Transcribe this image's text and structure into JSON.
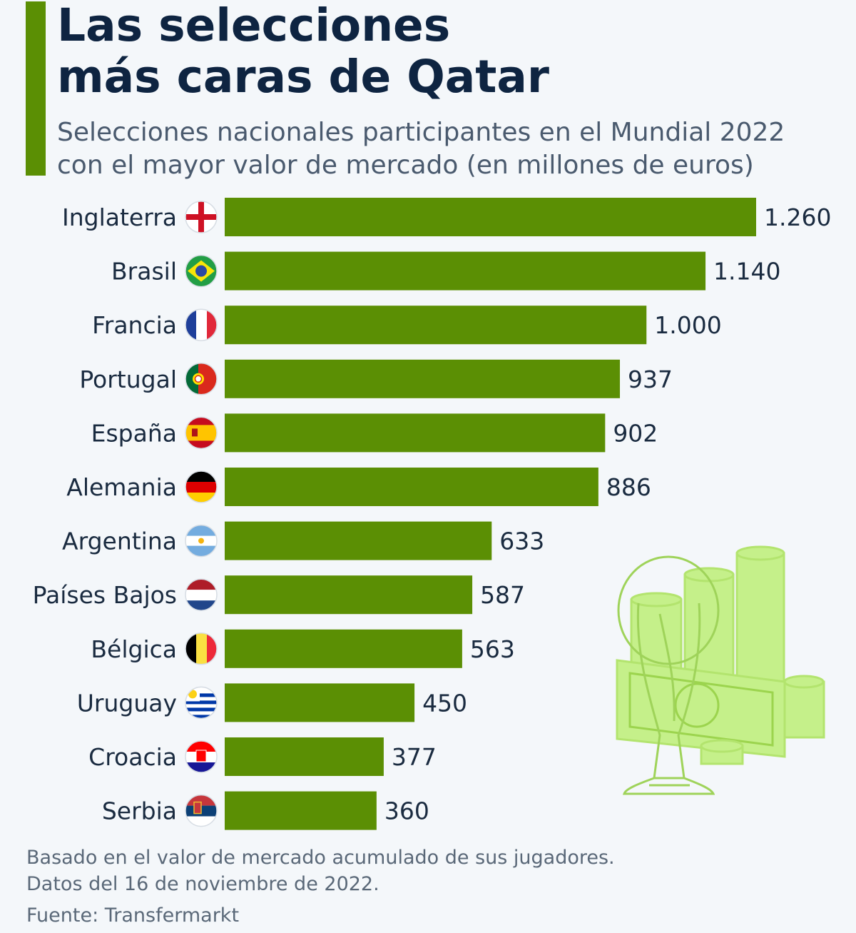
{
  "title_line1": "Las selecciones",
  "title_line2": "más caras de Qatar",
  "subtitle_line1": "Selecciones nacionales participantes en el Mundial 2022",
  "subtitle_line2": "con el mayor valor de mercado (en millones de euros)",
  "colors": {
    "bar": "#5b8f04",
    "accent": "#5b8f04",
    "illustration": "#c5f08a"
  },
  "chart_data": {
    "type": "bar",
    "orientation": "horizontal",
    "categories": [
      "Inglaterra",
      "Brasil",
      "Francia",
      "Portugal",
      "España",
      "Alemania",
      "Argentina",
      "Países Bajos",
      "Bélgica",
      "Uruguay",
      "Croacia",
      "Serbia"
    ],
    "values": [
      1260,
      1140,
      1000,
      937,
      902,
      886,
      633,
      587,
      563,
      450,
      377,
      360
    ],
    "value_labels": [
      "1.260",
      "1.140",
      "1.000",
      "937",
      "902",
      "886",
      "633",
      "587",
      "563",
      "450",
      "377",
      "360"
    ],
    "flags": [
      "england",
      "brazil",
      "france",
      "portugal",
      "spain",
      "germany",
      "argentina",
      "netherlands",
      "belgium",
      "uruguay",
      "croatia",
      "serbia"
    ],
    "xlim": [
      0,
      1260
    ],
    "grid": false,
    "legend": "none"
  },
  "footnotes": {
    "line1": "Basado en el valor de mercado acumulado de sus jugadores.",
    "line2": "Datos del 16 de noviembre de 2022.",
    "source": "Fuente: Transfermarkt"
  }
}
